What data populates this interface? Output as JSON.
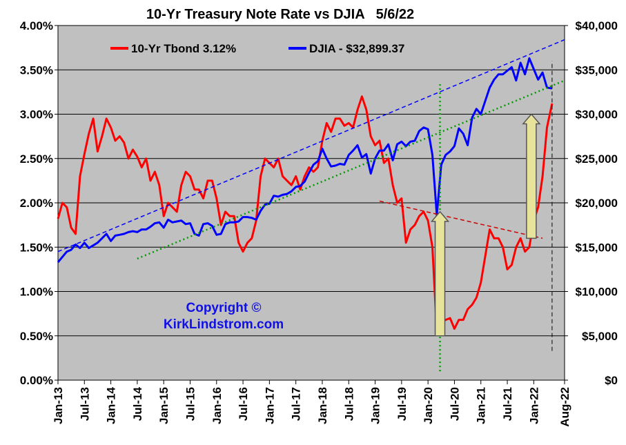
{
  "chart_data": {
    "type": "line",
    "title": "10-Yr Treasury Note Rate vs DJIA   5/6/22",
    "copyright_line1": "Copyright ©",
    "copyright_line2": "KirkLindstrom.com",
    "grid": true,
    "background": "#c0c0c0",
    "legend_placement": "top-left inside plot",
    "x_ticks": [
      "Jan-13",
      "Jul-13",
      "Jan-14",
      "Jul-14",
      "Jan-15",
      "Jul-15",
      "Jan-16",
      "Jul-16",
      "Jan-17",
      "Jul-17",
      "Jan-18",
      "Jul-18",
      "Jan-19",
      "Jul-19",
      "Jan-20",
      "Jul-20",
      "Jan-21",
      "Jul-21",
      "Jan-22",
      "Aug-22"
    ],
    "x_range": [
      "2013-01",
      "2022-08"
    ],
    "y_left": {
      "ticks": [
        "0.00%",
        "0.50%",
        "1.00%",
        "1.50%",
        "2.00%",
        "2.50%",
        "3.00%",
        "3.50%",
        "4.00%"
      ],
      "range": [
        0,
        4
      ]
    },
    "y_right": {
      "ticks": [
        "$0",
        "$5,000",
        "$10,000",
        "$15,000",
        "$20,000",
        "$25,000",
        "$30,000",
        "$35,000",
        "$40,000"
      ],
      "range": [
        0,
        40000
      ]
    },
    "series": [
      {
        "name": "10-Yr Tbond 3.12%",
        "axis": "left",
        "color": "#ff0000",
        "points": [
          [
            "2013-01-01",
            1.82
          ],
          [
            "2013-02-01",
            2.0
          ],
          [
            "2013-03-01",
            1.95
          ],
          [
            "2013-04-01",
            1.72
          ],
          [
            "2013-05-01",
            1.65
          ],
          [
            "2013-06-01",
            2.3
          ],
          [
            "2013-07-01",
            2.55
          ],
          [
            "2013-08-01",
            2.78
          ],
          [
            "2013-09-01",
            2.95
          ],
          [
            "2013-10-01",
            2.58
          ],
          [
            "2013-11-01",
            2.75
          ],
          [
            "2013-12-01",
            2.95
          ],
          [
            "2014-01-01",
            2.85
          ],
          [
            "2014-02-01",
            2.7
          ],
          [
            "2014-03-01",
            2.75
          ],
          [
            "2014-04-01",
            2.68
          ],
          [
            "2014-05-01",
            2.5
          ],
          [
            "2014-06-01",
            2.6
          ],
          [
            "2014-07-01",
            2.52
          ],
          [
            "2014-08-01",
            2.4
          ],
          [
            "2014-09-01",
            2.5
          ],
          [
            "2014-10-01",
            2.25
          ],
          [
            "2014-11-01",
            2.35
          ],
          [
            "2014-12-01",
            2.2
          ],
          [
            "2015-01-01",
            1.85
          ],
          [
            "2015-02-01",
            2.0
          ],
          [
            "2015-03-01",
            1.95
          ],
          [
            "2015-04-01",
            1.9
          ],
          [
            "2015-05-01",
            2.2
          ],
          [
            "2015-06-01",
            2.35
          ],
          [
            "2015-07-01",
            2.3
          ],
          [
            "2015-08-01",
            2.15
          ],
          [
            "2015-09-01",
            2.15
          ],
          [
            "2015-10-01",
            2.05
          ],
          [
            "2015-11-01",
            2.25
          ],
          [
            "2015-12-01",
            2.25
          ],
          [
            "2016-01-01",
            2.05
          ],
          [
            "2016-02-01",
            1.75
          ],
          [
            "2016-03-01",
            1.9
          ],
          [
            "2016-04-01",
            1.85
          ],
          [
            "2016-05-01",
            1.85
          ],
          [
            "2016-06-01",
            1.55
          ],
          [
            "2016-07-01",
            1.45
          ],
          [
            "2016-08-01",
            1.55
          ],
          [
            "2016-09-01",
            1.6
          ],
          [
            "2016-10-01",
            1.8
          ],
          [
            "2016-11-01",
            2.3
          ],
          [
            "2016-12-01",
            2.5
          ],
          [
            "2017-01-01",
            2.45
          ],
          [
            "2017-02-01",
            2.4
          ],
          [
            "2017-03-01",
            2.5
          ],
          [
            "2017-04-01",
            2.3
          ],
          [
            "2017-05-01",
            2.25
          ],
          [
            "2017-06-01",
            2.2
          ],
          [
            "2017-07-01",
            2.3
          ],
          [
            "2017-08-01",
            2.15
          ],
          [
            "2017-09-01",
            2.3
          ],
          [
            "2017-10-01",
            2.4
          ],
          [
            "2017-11-01",
            2.35
          ],
          [
            "2017-12-01",
            2.4
          ],
          [
            "2018-01-01",
            2.7
          ],
          [
            "2018-02-01",
            2.9
          ],
          [
            "2018-03-01",
            2.8
          ],
          [
            "2018-04-01",
            2.95
          ],
          [
            "2018-05-01",
            2.95
          ],
          [
            "2018-06-01",
            2.87
          ],
          [
            "2018-07-01",
            2.9
          ],
          [
            "2018-08-01",
            2.85
          ],
          [
            "2018-09-01",
            3.05
          ],
          [
            "2018-10-01",
            3.2
          ],
          [
            "2018-11-01",
            3.05
          ],
          [
            "2018-12-01",
            2.75
          ],
          [
            "2019-01-01",
            2.65
          ],
          [
            "2019-02-01",
            2.7
          ],
          [
            "2019-03-01",
            2.45
          ],
          [
            "2019-04-01",
            2.5
          ],
          [
            "2019-05-01",
            2.2
          ],
          [
            "2019-06-01",
            2.0
          ],
          [
            "2019-07-01",
            2.05
          ],
          [
            "2019-08-01",
            1.55
          ],
          [
            "2019-09-01",
            1.7
          ],
          [
            "2019-10-01",
            1.75
          ],
          [
            "2019-11-01",
            1.85
          ],
          [
            "2019-12-01",
            1.9
          ],
          [
            "2020-01-01",
            1.8
          ],
          [
            "2020-02-01",
            1.5
          ],
          [
            "2020-03-01",
            0.55
          ],
          [
            "2020-04-01",
            0.65
          ],
          [
            "2020-05-01",
            0.68
          ],
          [
            "2020-06-01",
            0.7
          ],
          [
            "2020-07-01",
            0.58
          ],
          [
            "2020-08-01",
            0.68
          ],
          [
            "2020-09-01",
            0.68
          ],
          [
            "2020-10-01",
            0.8
          ],
          [
            "2020-11-01",
            0.85
          ],
          [
            "2020-12-01",
            0.93
          ],
          [
            "2021-01-01",
            1.1
          ],
          [
            "2021-02-01",
            1.4
          ],
          [
            "2021-03-01",
            1.7
          ],
          [
            "2021-04-01",
            1.6
          ],
          [
            "2021-05-01",
            1.6
          ],
          [
            "2021-06-01",
            1.5
          ],
          [
            "2021-07-01",
            1.25
          ],
          [
            "2021-08-01",
            1.3
          ],
          [
            "2021-09-01",
            1.5
          ],
          [
            "2021-10-01",
            1.6
          ],
          [
            "2021-11-01",
            1.45
          ],
          [
            "2021-12-01",
            1.5
          ],
          [
            "2022-01-01",
            1.8
          ],
          [
            "2022-02-01",
            1.95
          ],
          [
            "2022-03-01",
            2.3
          ],
          [
            "2022-04-01",
            2.85
          ],
          [
            "2022-05-06",
            3.12
          ]
        ]
      },
      {
        "name": "DJIA - $32,899.37",
        "axis": "right",
        "color": "#0000ff",
        "points": [
          [
            "2013-01-01",
            13300
          ],
          [
            "2013-02-01",
            13900
          ],
          [
            "2013-03-01",
            14500
          ],
          [
            "2013-04-01",
            14700
          ],
          [
            "2013-05-01",
            15300
          ],
          [
            "2013-06-01",
            14900
          ],
          [
            "2013-07-01",
            15500
          ],
          [
            "2013-08-01",
            14900
          ],
          [
            "2013-09-01",
            15200
          ],
          [
            "2013-10-01",
            15500
          ],
          [
            "2013-11-01",
            16000
          ],
          [
            "2013-12-01",
            16500
          ],
          [
            "2014-01-01",
            15700
          ],
          [
            "2014-02-01",
            16300
          ],
          [
            "2014-03-01",
            16400
          ],
          [
            "2014-04-01",
            16500
          ],
          [
            "2014-05-01",
            16700
          ],
          [
            "2014-06-01",
            16800
          ],
          [
            "2014-07-01",
            16700
          ],
          [
            "2014-08-01",
            17000
          ],
          [
            "2014-09-01",
            17000
          ],
          [
            "2014-10-01",
            17300
          ],
          [
            "2014-11-01",
            17700
          ],
          [
            "2014-12-01",
            17800
          ],
          [
            "2015-01-01",
            17200
          ],
          [
            "2015-02-01",
            18100
          ],
          [
            "2015-03-01",
            17800
          ],
          [
            "2015-04-01",
            17900
          ],
          [
            "2015-05-01",
            18000
          ],
          [
            "2015-06-01",
            17600
          ],
          [
            "2015-07-01",
            17700
          ],
          [
            "2015-08-01",
            16500
          ],
          [
            "2015-09-01",
            16300
          ],
          [
            "2015-10-01",
            17600
          ],
          [
            "2015-11-01",
            17700
          ],
          [
            "2015-12-01",
            17400
          ],
          [
            "2016-01-01",
            16400
          ],
          [
            "2016-02-01",
            16500
          ],
          [
            "2016-03-01",
            17600
          ],
          [
            "2016-04-01",
            17800
          ],
          [
            "2016-05-01",
            17800
          ],
          [
            "2016-06-01",
            17900
          ],
          [
            "2016-07-01",
            18400
          ],
          [
            "2016-08-01",
            18400
          ],
          [
            "2016-09-01",
            18300
          ],
          [
            "2016-10-01",
            18100
          ],
          [
            "2016-11-01",
            19100
          ],
          [
            "2016-12-01",
            19800
          ],
          [
            "2017-01-01",
            19900
          ],
          [
            "2017-02-01",
            20800
          ],
          [
            "2017-03-01",
            20700
          ],
          [
            "2017-04-01",
            20900
          ],
          [
            "2017-05-01",
            21000
          ],
          [
            "2017-06-01",
            21300
          ],
          [
            "2017-07-01",
            21800
          ],
          [
            "2017-08-01",
            21900
          ],
          [
            "2017-09-01",
            22400
          ],
          [
            "2017-10-01",
            23400
          ],
          [
            "2017-11-01",
            24300
          ],
          [
            "2017-12-01",
            24700
          ],
          [
            "2018-01-01",
            26100
          ],
          [
            "2018-02-01",
            25000
          ],
          [
            "2018-03-01",
            24100
          ],
          [
            "2018-04-01",
            24200
          ],
          [
            "2018-05-01",
            24400
          ],
          [
            "2018-06-01",
            24300
          ],
          [
            "2018-07-01",
            25400
          ],
          [
            "2018-08-01",
            25900
          ],
          [
            "2018-09-01",
            26500
          ],
          [
            "2018-10-01",
            25100
          ],
          [
            "2018-11-01",
            25500
          ],
          [
            "2018-12-01",
            23300
          ],
          [
            "2019-01-01",
            25000
          ],
          [
            "2019-02-01",
            25900
          ],
          [
            "2019-03-01",
            25900
          ],
          [
            "2019-04-01",
            26600
          ],
          [
            "2019-05-01",
            24800
          ],
          [
            "2019-06-01",
            26600
          ],
          [
            "2019-07-01",
            26900
          ],
          [
            "2019-08-01",
            26400
          ],
          [
            "2019-09-01",
            26900
          ],
          [
            "2019-10-01",
            27000
          ],
          [
            "2019-11-01",
            28100
          ],
          [
            "2019-12-01",
            28500
          ],
          [
            "2020-01-01",
            28300
          ],
          [
            "2020-02-01",
            25400
          ],
          [
            "2020-03-01",
            18600
          ],
          [
            "2020-04-01",
            24300
          ],
          [
            "2020-05-01",
            25400
          ],
          [
            "2020-06-01",
            25800
          ],
          [
            "2020-07-01",
            26400
          ],
          [
            "2020-08-01",
            28400
          ],
          [
            "2020-09-01",
            27800
          ],
          [
            "2020-10-01",
            26500
          ],
          [
            "2020-11-01",
            29600
          ],
          [
            "2020-12-01",
            30600
          ],
          [
            "2021-01-01",
            30000
          ],
          [
            "2021-02-01",
            31500
          ],
          [
            "2021-03-01",
            33000
          ],
          [
            "2021-04-01",
            33900
          ],
          [
            "2021-05-01",
            34500
          ],
          [
            "2021-06-01",
            34500
          ],
          [
            "2021-07-01",
            34900
          ],
          [
            "2021-08-01",
            35300
          ],
          [
            "2021-09-01",
            33800
          ],
          [
            "2021-10-01",
            35800
          ],
          [
            "2021-11-01",
            34500
          ],
          [
            "2021-12-01",
            36300
          ],
          [
            "2022-01-01",
            35100
          ],
          [
            "2022-02-01",
            33900
          ],
          [
            "2022-03-01",
            34700
          ],
          [
            "2022-04-01",
            33000
          ],
          [
            "2022-05-06",
            32899
          ]
        ]
      }
    ],
    "trendlines": [
      {
        "color": "#0000ff",
        "style": "dashed",
        "axis": "right",
        "from": [
          "2013-01-01",
          14500
        ],
        "to": [
          "2022-08-01",
          38400
        ]
      },
      {
        "color": "#009900",
        "style": "dotted",
        "axis": "right",
        "from": [
          "2014-07-01",
          13700
        ],
        "to": [
          "2022-08-01",
          33800
        ]
      },
      {
        "color": "#cc0000",
        "style": "dashed",
        "axis": "left",
        "from": [
          "2019-02-01",
          2.02
        ],
        "to": [
          "2022-03-01",
          1.6
        ]
      }
    ],
    "verticals": [
      {
        "color": "#009900",
        "style": "dotted",
        "x": "2020-03-23",
        "from": 0.1,
        "to": 3.35
      },
      {
        "color": "#000000",
        "style": "dashed",
        "x": "2022-05-06",
        "from": 0.33,
        "to": 3.6
      }
    ],
    "arrows": [
      {
        "color": "#e8e39a",
        "stroke": "#555555",
        "x": "2020-03-23",
        "from": 0.5,
        "to": 1.9
      },
      {
        "color": "#e8e39a",
        "stroke": "#555555",
        "x": "2021-12-15",
        "from": 1.6,
        "to": 3.0
      }
    ]
  }
}
